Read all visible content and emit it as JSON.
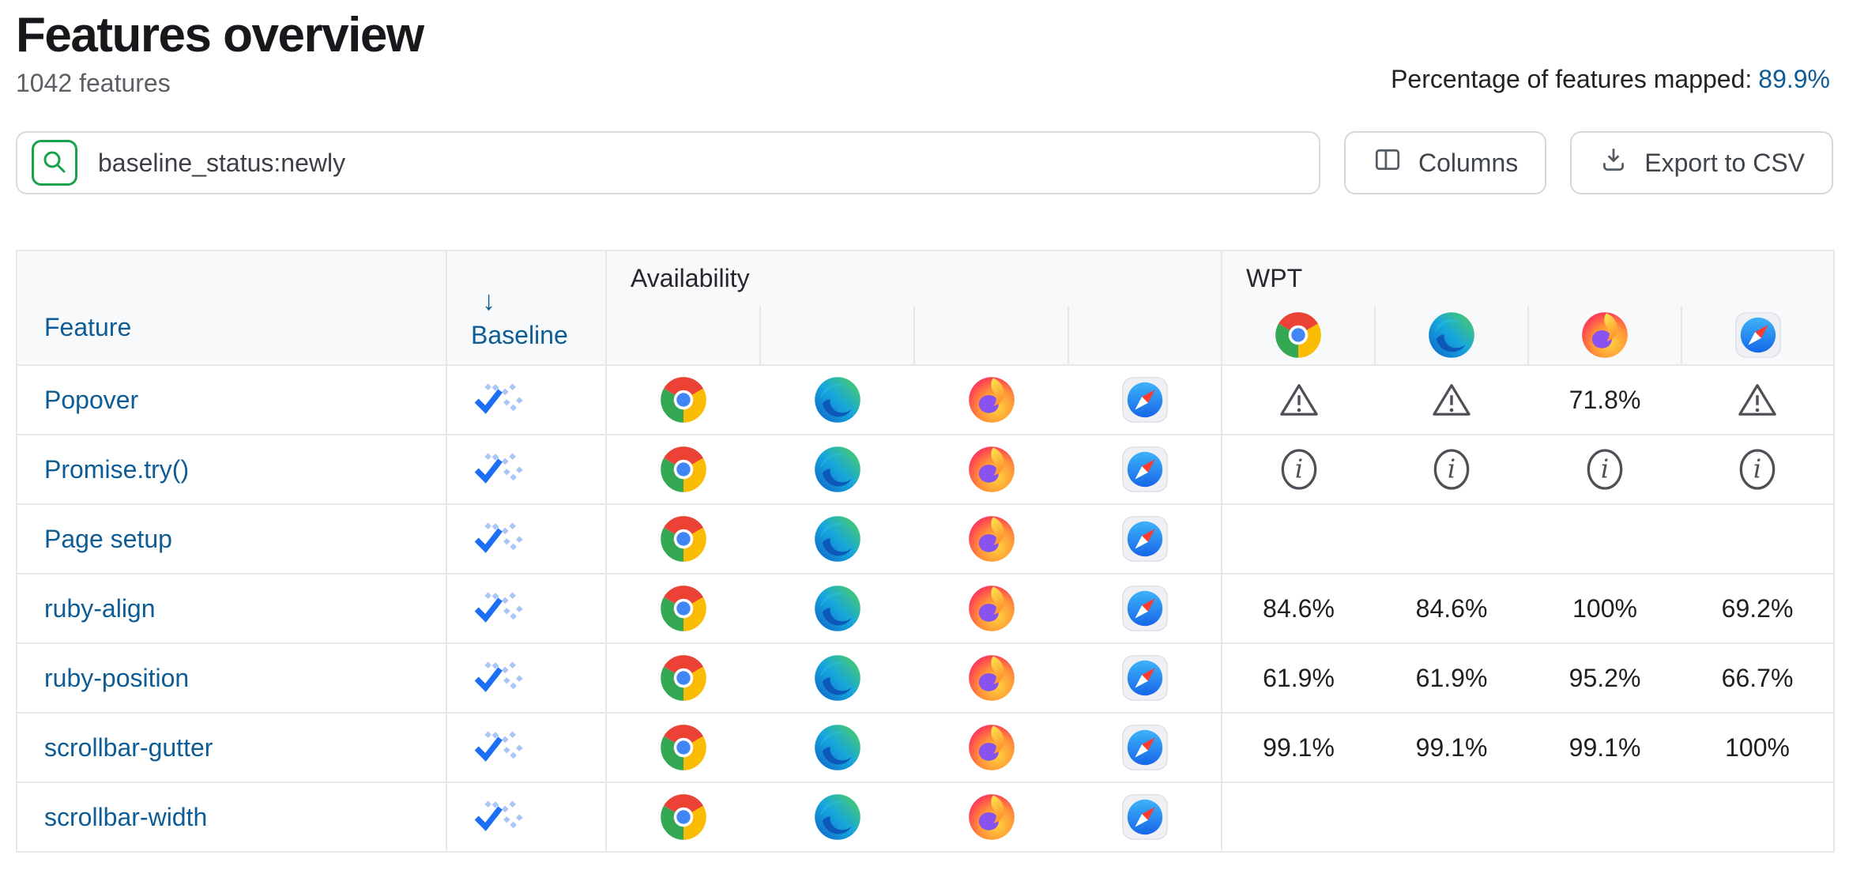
{
  "page": {
    "title": "Features overview",
    "subtitle": "1042 features",
    "mapped": {
      "label": "Percentage of features mapped:",
      "value": "89.9%"
    }
  },
  "toolbar": {
    "search_value": "baseline_status:newly",
    "search_icon": "search-icon",
    "columns_label": "Columns",
    "columns_icon": "columns-icon",
    "export_label": "Export to CSV",
    "export_icon": "download-icon"
  },
  "table": {
    "headers": {
      "feature": "Feature",
      "baseline": "Baseline",
      "sort_arrow": "↓",
      "availability": "Availability",
      "wpt": "WPT"
    },
    "browsers": [
      {
        "name": "chrome",
        "icon": "chrome-logo-icon"
      },
      {
        "name": "edge",
        "icon": "edge-logo-icon"
      },
      {
        "name": "firefox",
        "icon": "firefox-logo-icon"
      },
      {
        "name": "safari",
        "icon": "safari-logo-icon"
      }
    ],
    "baseline_status_icon": "baseline-newly-icon",
    "rows": [
      {
        "feature": "Popover",
        "baseline": "newly",
        "availability": [
          "chrome",
          "edge",
          "firefox",
          "safari"
        ],
        "wpt": [
          {
            "type": "warning",
            "icon": "warning-icon"
          },
          {
            "type": "warning",
            "icon": "warning-icon"
          },
          {
            "type": "value",
            "text": "71.8%"
          },
          {
            "type": "warning",
            "icon": "warning-icon"
          }
        ]
      },
      {
        "feature": "Promise.try()",
        "baseline": "newly",
        "availability": [
          "chrome",
          "edge",
          "firefox",
          "safari"
        ],
        "wpt": [
          {
            "type": "info",
            "icon": "info-icon"
          },
          {
            "type": "info",
            "icon": "info-icon"
          },
          {
            "type": "info",
            "icon": "info-icon"
          },
          {
            "type": "info",
            "icon": "info-icon"
          }
        ]
      },
      {
        "feature": "Page setup",
        "baseline": "newly",
        "availability": [
          "chrome",
          "edge",
          "firefox",
          "safari"
        ],
        "wpt": [
          {
            "type": "empty"
          },
          {
            "type": "empty"
          },
          {
            "type": "empty"
          },
          {
            "type": "empty"
          }
        ]
      },
      {
        "feature": "ruby-align",
        "baseline": "newly",
        "availability": [
          "chrome",
          "edge",
          "firefox",
          "safari"
        ],
        "wpt": [
          {
            "type": "value",
            "text": "84.6%"
          },
          {
            "type": "value",
            "text": "84.6%"
          },
          {
            "type": "value",
            "text": "100%"
          },
          {
            "type": "value",
            "text": "69.2%"
          }
        ]
      },
      {
        "feature": "ruby-position",
        "baseline": "newly",
        "availability": [
          "chrome",
          "edge",
          "firefox",
          "safari"
        ],
        "wpt": [
          {
            "type": "value",
            "text": "61.9%"
          },
          {
            "type": "value",
            "text": "61.9%"
          },
          {
            "type": "value",
            "text": "95.2%"
          },
          {
            "type": "value",
            "text": "66.7%"
          }
        ]
      },
      {
        "feature": "scrollbar-gutter",
        "baseline": "newly",
        "availability": [
          "chrome",
          "edge",
          "firefox",
          "safari"
        ],
        "wpt": [
          {
            "type": "value",
            "text": "99.1%"
          },
          {
            "type": "value",
            "text": "99.1%"
          },
          {
            "type": "value",
            "text": "99.1%"
          },
          {
            "type": "value",
            "text": "100%"
          }
        ]
      },
      {
        "feature": "scrollbar-width",
        "baseline": "newly",
        "availability": [
          "chrome",
          "edge",
          "firefox",
          "safari"
        ],
        "wpt": [
          {
            "type": "empty"
          },
          {
            "type": "empty"
          },
          {
            "type": "empty"
          },
          {
            "type": "empty"
          }
        ]
      }
    ]
  },
  "colors": {
    "link_blue": "#0d5c95",
    "search_green": "#18a24b",
    "baseline_check_blue": "#1a6ef5",
    "baseline_dot_blue": "#aac7f8",
    "header_bg": "#f8f9fa",
    "border": "#e7e8ea",
    "icon_gray": "#4d5157"
  }
}
